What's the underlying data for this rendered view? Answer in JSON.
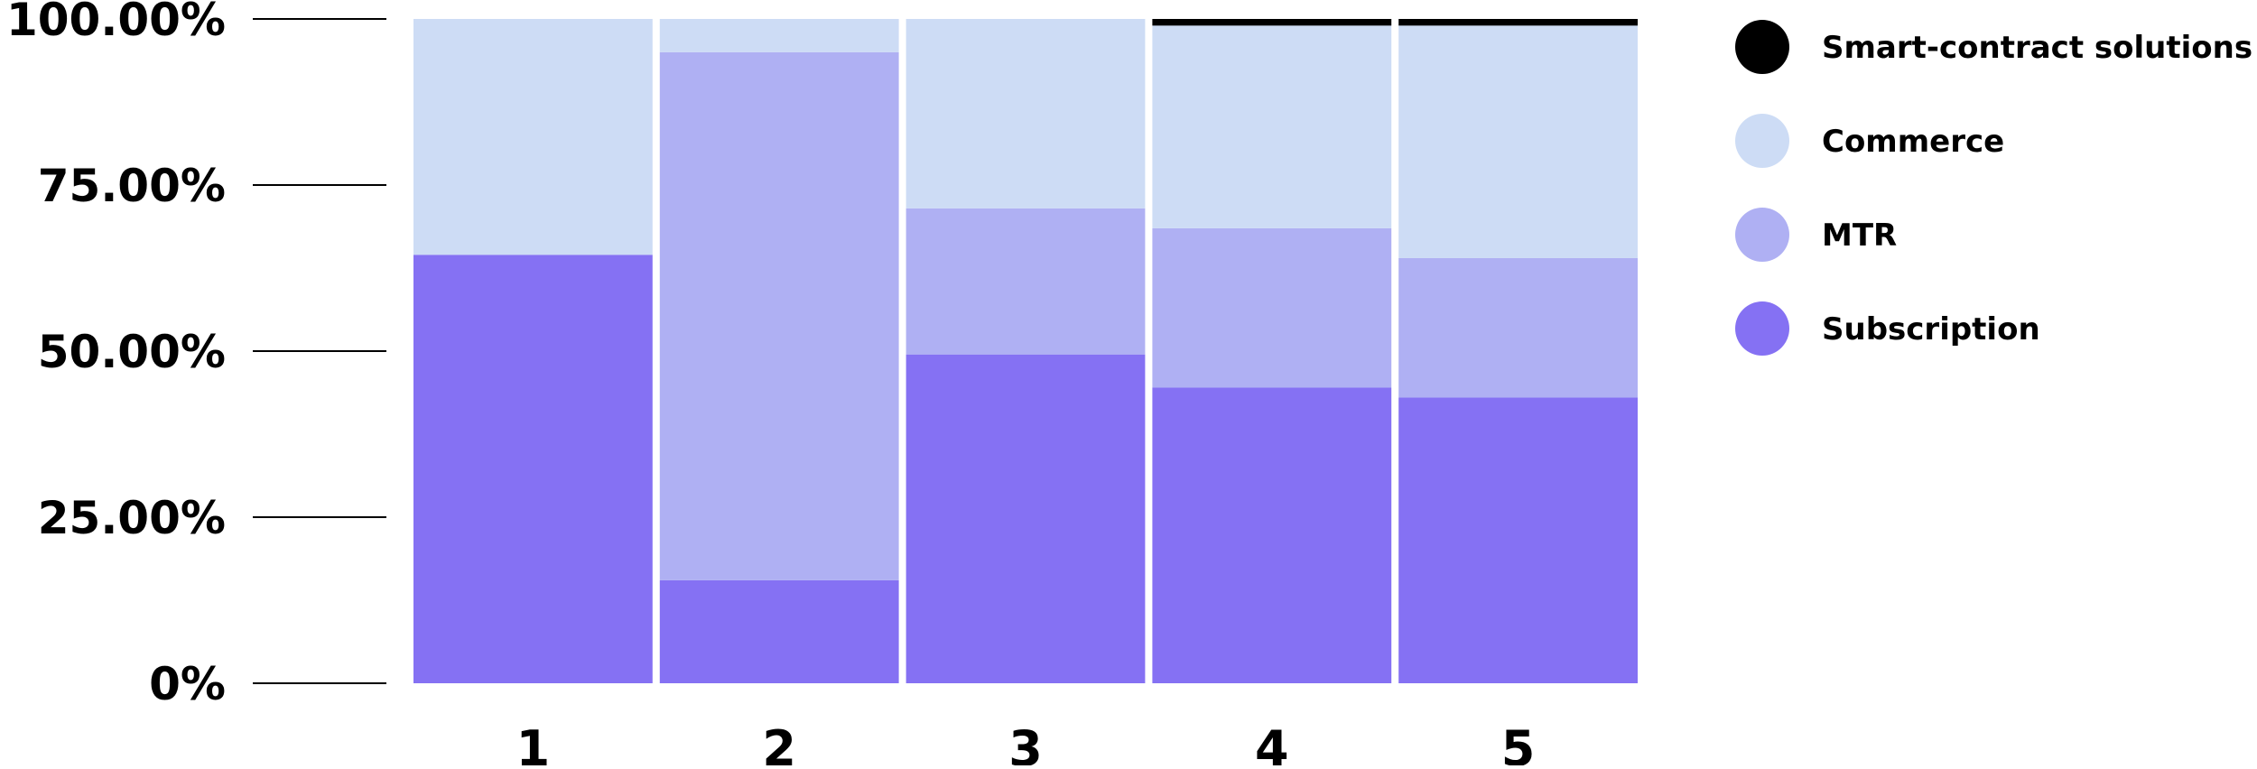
{
  "chart_data": {
    "type": "bar",
    "stacked": true,
    "normalized": true,
    "title": "",
    "xlabel": "",
    "ylabel": "",
    "ylim": [
      0,
      100
    ],
    "grid": false,
    "legend_position": "right",
    "categories": [
      "1",
      "2",
      "3",
      "4",
      "5"
    ],
    "y_ticks": [
      0,
      25,
      50,
      75,
      100
    ],
    "y_tick_labels": [
      "0%",
      "25.00%",
      "50.00%",
      "75.00%",
      "100.00%"
    ],
    "series": [
      {
        "name": "Subscription",
        "color": "#8571f3",
        "values": [
          64.5,
          15.5,
          49.5,
          44.5,
          43
        ]
      },
      {
        "name": "MTR",
        "color": "#afb0f3",
        "values": [
          0,
          79.5,
          22,
          24,
          21
        ]
      },
      {
        "name": "Commerce",
        "color": "#cddcf5",
        "values": [
          35.5,
          5,
          28.5,
          30.5,
          35
        ]
      },
      {
        "name": "Smart-contract solutions",
        "color": "#000000",
        "values": [
          0,
          0,
          0,
          1,
          1
        ]
      }
    ],
    "legend_order": [
      "Smart-contract solutions",
      "Commerce",
      "MTR",
      "Subscription"
    ]
  }
}
